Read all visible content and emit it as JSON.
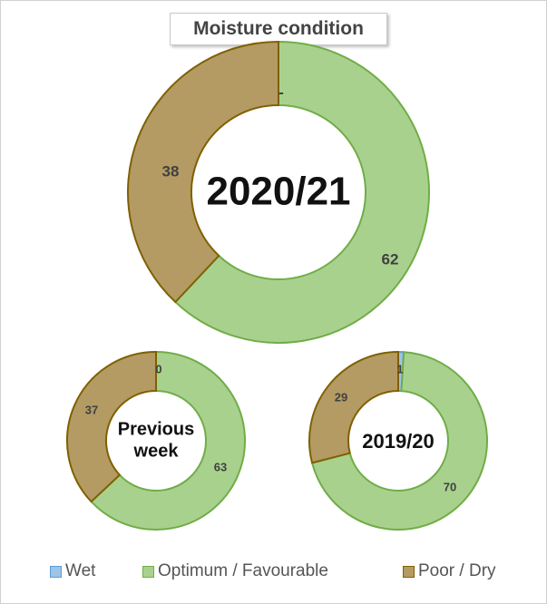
{
  "chart_data": {
    "type": "pie",
    "title": "Moisture condition",
    "colors": {
      "wet_fill": "#9dc3e6",
      "wet_stroke": "#5b9bd5",
      "optimum_fill": "#a9d18e",
      "optimum_stroke": "#70ad47",
      "dry_fill": "#b49b64",
      "dry_stroke": "#7f6000"
    },
    "legend": [
      {
        "label": "Wet"
      },
      {
        "label": "Optimum / Favourable"
      },
      {
        "label": "Poor / Dry"
      }
    ],
    "charts": [
      {
        "id": "main",
        "center_label": "2020/21",
        "series": [
          {
            "name": "Wet",
            "value": 0,
            "label": "-"
          },
          {
            "name": "Optimum / Favourable",
            "value": 62,
            "label": "62"
          },
          {
            "name": "Poor / Dry",
            "value": 38,
            "label": "38"
          }
        ]
      },
      {
        "id": "previous",
        "center_label_lines": [
          "Previous",
          "week"
        ],
        "series": [
          {
            "name": "Wet",
            "value": 0,
            "label": "0"
          },
          {
            "name": "Optimum / Favourable",
            "value": 63,
            "label": "63"
          },
          {
            "name": "Poor / Dry",
            "value": 37,
            "label": "37"
          }
        ]
      },
      {
        "id": "lastyear",
        "center_label": "2019/20",
        "series": [
          {
            "name": "Wet",
            "value": 1,
            "label": "1"
          },
          {
            "name": "Optimum / Favourable",
            "value": 70,
            "label": "70"
          },
          {
            "name": "Poor / Dry",
            "value": 29,
            "label": "29"
          }
        ]
      }
    ]
  }
}
